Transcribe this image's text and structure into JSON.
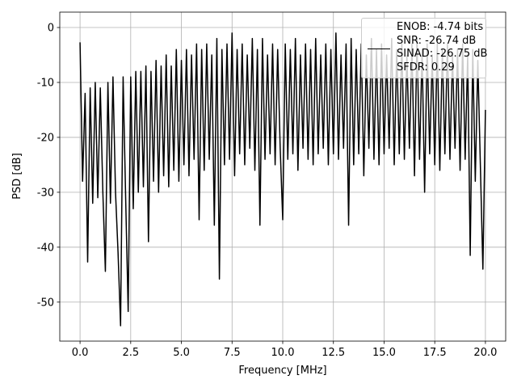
{
  "chart_data": {
    "type": "line",
    "xlabel": "Frequency [MHz]",
    "ylabel": "PSD [dB]",
    "x": [
      0,
      0.125,
      0.25,
      0.375,
      0.5,
      0.625,
      0.75,
      0.875,
      1,
      1.125,
      1.25,
      1.375,
      1.5,
      1.625,
      1.75,
      1.875,
      2,
      2.125,
      2.25,
      2.375,
      2.5,
      2.625,
      2.75,
      2.875,
      3,
      3.125,
      3.25,
      3.375,
      3.5,
      3.625,
      3.75,
      3.875,
      4,
      4.125,
      4.25,
      4.375,
      4.5,
      4.625,
      4.75,
      4.875,
      5,
      5.125,
      5.25,
      5.375,
      5.5,
      5.625,
      5.75,
      5.875,
      6,
      6.125,
      6.25,
      6.375,
      6.5,
      6.625,
      6.75,
      6.875,
      7,
      7.125,
      7.25,
      7.375,
      7.5,
      7.625,
      7.75,
      7.875,
      8,
      8.125,
      8.25,
      8.375,
      8.5,
      8.625,
      8.75,
      8.875,
      9,
      9.125,
      9.25,
      9.375,
      9.5,
      9.625,
      9.75,
      9.875,
      10,
      10.125,
      10.25,
      10.375,
      10.5,
      10.625,
      10.75,
      10.875,
      11,
      11.125,
      11.25,
      11.375,
      11.5,
      11.625,
      11.75,
      11.875,
      12,
      12.125,
      12.25,
      12.375,
      12.5,
      12.625,
      12.75,
      12.875,
      13,
      13.125,
      13.25,
      13.375,
      13.5,
      13.625,
      13.75,
      13.875,
      14,
      14.125,
      14.25,
      14.375,
      14.5,
      14.625,
      14.75,
      14.875,
      15,
      15.125,
      15.25,
      15.375,
      15.5,
      15.625,
      15.75,
      15.875,
      16,
      16.125,
      16.25,
      16.375,
      16.5,
      16.625,
      16.75,
      16.875,
      17,
      17.125,
      17.25,
      17.375,
      17.5,
      17.625,
      17.75,
      17.875,
      18,
      18.125,
      18.25,
      18.375,
      18.5,
      18.625,
      18.75,
      18.875,
      19,
      19.125,
      19.25,
      19.375,
      19.5,
      19.625,
      19.75,
      19.875,
      20
    ],
    "series": [
      {
        "name": "ENOB: -4.74 bits\nSNR: -26.74 dB\nSINAD: -26.75 dB\nSFDR: 0.29",
        "color": "#000000",
        "values": [
          -2.7,
          -28,
          -12,
          -42.7,
          -11,
          -32,
          -10,
          -31,
          -11,
          -30,
          -44.4,
          -10,
          -32,
          -9,
          -30,
          -41,
          -54.3,
          -9,
          -31,
          -51.7,
          -9,
          -33,
          -8,
          -30,
          -8,
          -29,
          -7,
          -39,
          -8,
          -28,
          -6,
          -30,
          -7,
          -27,
          -5,
          -29,
          -7,
          -26,
          -4,
          -28,
          -6,
          -25,
          -4,
          -27,
          -5,
          -24,
          -3,
          -35,
          -4,
          -26,
          -3,
          -24,
          -5,
          -36,
          -2,
          -45.8,
          -4,
          -25,
          -3,
          -24,
          -1,
          -27,
          -4,
          -23,
          -3,
          -25,
          -5,
          -22,
          -2,
          -26,
          -4,
          -36,
          -2,
          -24,
          -5,
          -23,
          -3,
          -25,
          -4,
          -22,
          -35,
          -3,
          -24,
          -4,
          -23,
          -2,
          -26,
          -5,
          -22,
          -3,
          -24,
          -4,
          -25,
          -2,
          -23,
          -5,
          -22,
          -3,
          -25,
          -4,
          -23,
          -1,
          -24,
          -5,
          -22,
          -3,
          -36,
          -2,
          -25,
          -4,
          -23,
          -3,
          -27,
          -5,
          -22,
          -2,
          -24,
          -4,
          -25,
          -3,
          -23,
          -5,
          -22,
          -2,
          -25,
          -4,
          -23,
          -3,
          -24,
          -5,
          -22,
          -3,
          -27,
          -2,
          -24,
          -4,
          -30,
          -3,
          -23,
          -5,
          -25,
          -3,
          -26,
          -4,
          -23,
          -3,
          -24,
          -5,
          -22,
          -4,
          -26,
          -3,
          -24,
          -5,
          -41.5,
          -4,
          -28,
          -6,
          -25,
          -44,
          -15
        ]
      }
    ],
    "xlim": [
      -1,
      21
    ],
    "ylim": [
      -57.1,
      2.8
    ],
    "xticks": [
      {
        "value": 0,
        "label": "0.0"
      },
      2.5,
      {
        "value": 5,
        "label": "5.0"
      },
      7.5,
      {
        "value": 10,
        "label": "10.0"
      },
      12.5,
      {
        "value": 15,
        "label": "15.0"
      },
      17.5,
      {
        "value": 20,
        "label": "20.0"
      }
    ],
    "yticks": [
      0,
      -10,
      -20,
      -30,
      -40,
      -50
    ],
    "grid": true,
    "legend": "upper right"
  }
}
